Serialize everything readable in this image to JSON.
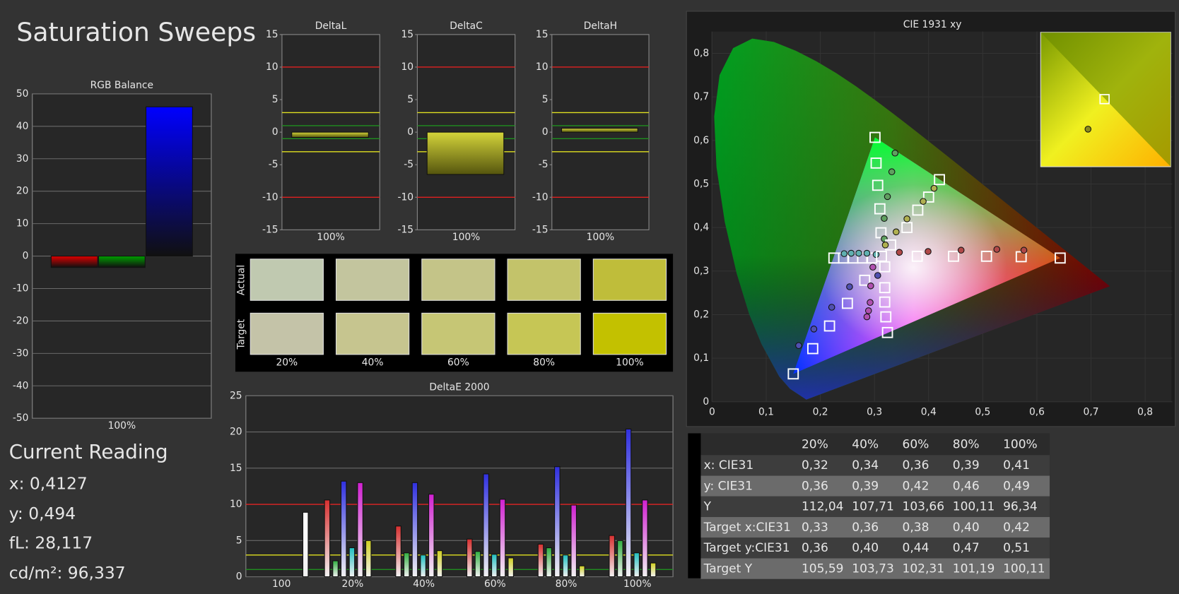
{
  "title": "Saturation Sweeps",
  "current_reading": {
    "title": "Current Reading",
    "lines": [
      "x: 0,4127",
      "y: 0,494",
      "fL: 28,117",
      "cd/m²: 96,337"
    ]
  },
  "swatches": {
    "row_labels": [
      "Actual",
      "Target"
    ],
    "columns": [
      "20%",
      "40%",
      "60%",
      "80%",
      "100%"
    ],
    "actual_colors": [
      "#c0c9b0",
      "#c3c59e",
      "#c4c488",
      "#c3c36a",
      "#bfbd3a"
    ],
    "target_colors": [
      "#c4c3a8",
      "#c6c58f",
      "#c6c675",
      "#c6c655",
      "#c3c100"
    ]
  },
  "table": {
    "header": [
      "20%",
      "40%",
      "60%",
      "80%",
      "100%"
    ],
    "rows": [
      [
        "x: CIE31",
        "0,32",
        "0,34",
        "0,36",
        "0,39",
        "0,41"
      ],
      [
        "y: CIE31",
        "0,36",
        "0,39",
        "0,42",
        "0,46",
        "0,49"
      ],
      [
        "Y",
        "112,04",
        "107,71",
        "103,66",
        "100,11",
        "96,34"
      ],
      [
        "Target x:CIE31",
        "0,33",
        "0,36",
        "0,38",
        "0,40",
        "0,42"
      ],
      [
        "Target y:CIE31",
        "0,36",
        "0,40",
        "0,44",
        "0,47",
        "0,51"
      ],
      [
        "Target Y",
        "105,59",
        "103,73",
        "102,31",
        "101,19",
        "100,11"
      ]
    ]
  },
  "chart_data": [
    {
      "type": "bar",
      "title": "RGB Balance",
      "categories": [
        "100%"
      ],
      "series": [
        {
          "color": "#e00000",
          "values": [
            -3.5
          ]
        },
        {
          "color": "#00a000",
          "values": [
            -3.5
          ]
        },
        {
          "color": "#0000ff",
          "values": [
            46
          ]
        }
      ],
      "ylim": [
        -50,
        50
      ],
      "yticks": [
        -50,
        -40,
        -30,
        -20,
        -10,
        0,
        10,
        20,
        30,
        40,
        50
      ],
      "grid": true
    },
    {
      "type": "bar",
      "title": "DeltaL",
      "categories": [
        "100%"
      ],
      "series": [
        {
          "color": "#d4d43a",
          "values": [
            -0.8
          ]
        }
      ],
      "ylim": [
        -15,
        15
      ],
      "yticks": [
        -15,
        -10,
        -5,
        0,
        5,
        10,
        15
      ],
      "grid": false,
      "threshold_lines": [
        {
          "value": 10,
          "color": "#e02020"
        },
        {
          "value": -10,
          "color": "#e02020"
        },
        {
          "value": 3,
          "color": "#e0e020"
        },
        {
          "value": -3,
          "color": "#e0e020"
        },
        {
          "value": 1,
          "color": "#1f8f1f"
        },
        {
          "value": -1,
          "color": "#1f8f1f"
        }
      ]
    },
    {
      "type": "bar",
      "title": "DeltaC",
      "categories": [
        "100%"
      ],
      "series": [
        {
          "color": "#d4d43a",
          "values": [
            -6.5
          ]
        }
      ],
      "ylim": [
        -15,
        15
      ],
      "yticks": [
        -15,
        -10,
        -5,
        0,
        5,
        10,
        15
      ],
      "grid": false,
      "threshold_lines": [
        {
          "value": 10,
          "color": "#e02020"
        },
        {
          "value": -10,
          "color": "#e02020"
        },
        {
          "value": 3,
          "color": "#e0e020"
        },
        {
          "value": -3,
          "color": "#e0e020"
        },
        {
          "value": 1,
          "color": "#1f8f1f"
        },
        {
          "value": -1,
          "color": "#1f8f1f"
        }
      ]
    },
    {
      "type": "bar",
      "title": "DeltaH",
      "categories": [
        "100%"
      ],
      "series": [
        {
          "color": "#d4d43a",
          "values": [
            0.6
          ]
        }
      ],
      "ylim": [
        -15,
        15
      ],
      "yticks": [
        -15,
        -10,
        -5,
        0,
        5,
        10,
        15
      ],
      "grid": false,
      "threshold_lines": [
        {
          "value": 10,
          "color": "#e02020"
        },
        {
          "value": -10,
          "color": "#e02020"
        },
        {
          "value": 3,
          "color": "#e0e020"
        },
        {
          "value": -3,
          "color": "#e0e020"
        },
        {
          "value": 1,
          "color": "#1f8f1f"
        },
        {
          "value": -1,
          "color": "#1f8f1f"
        }
      ]
    },
    {
      "type": "bar",
      "title": "DeltaE 2000",
      "categories": [
        "100",
        "20%",
        "40%",
        "60%",
        "80%",
        "100%"
      ],
      "series": [
        {
          "color": "#d83030",
          "values": [
            null,
            10.6,
            7.0,
            5.2,
            4.5,
            5.7
          ]
        },
        {
          "color": "#30b040",
          "values": [
            null,
            2.2,
            3.3,
            3.5,
            4.0,
            5.0
          ]
        },
        {
          "color": "#3030e0",
          "values": [
            null,
            13.2,
            13.0,
            14.2,
            15.2,
            20.4
          ]
        },
        {
          "color": "#20c0c0",
          "values": [
            null,
            4.0,
            3.0,
            3.1,
            3.0,
            3.3
          ]
        },
        {
          "color": "#d020d0",
          "values": [
            null,
            13.0,
            11.4,
            10.7,
            9.9,
            10.6
          ]
        },
        {
          "color": "#d0d020",
          "values": [
            null,
            5.0,
            3.6,
            2.6,
            1.5,
            1.9
          ]
        },
        {
          "color": "#ffffff",
          "values": [
            8.9,
            null,
            null,
            null,
            null,
            null
          ]
        }
      ],
      "ylim": [
        0,
        25
      ],
      "yticks": [
        0,
        5,
        10,
        15,
        20,
        25
      ],
      "grid": true,
      "threshold_lines": [
        {
          "value": 10,
          "color": "#e02020"
        },
        {
          "value": 3,
          "color": "#e0e020"
        },
        {
          "value": 1,
          "color": "#1f8f1f"
        }
      ]
    },
    {
      "type": "scatter",
      "title": "CIE 1931 xy",
      "xlim": [
        0,
        0.85
      ],
      "ylim": [
        0,
        0.85
      ],
      "xticks": [
        0,
        {
          "value": 0.1,
          "label": "0,1"
        },
        {
          "value": 0.2,
          "label": "0,2"
        },
        {
          "value": 0.3,
          "label": "0,3"
        },
        {
          "value": 0.4,
          "label": "0,4"
        },
        {
          "value": 0.5,
          "label": "0,5"
        },
        {
          "value": 0.6,
          "label": "0,6"
        },
        {
          "value": 0.7,
          "label": "0,7"
        },
        {
          "value": 0.8,
          "label": "0,8"
        }
      ],
      "yticks": [
        0,
        {
          "value": 0.1,
          "label": "0,1"
        },
        {
          "value": 0.2,
          "label": "0,2"
        },
        {
          "value": 0.3,
          "label": "0,3"
        },
        {
          "value": 0.4,
          "label": "0,4"
        },
        {
          "value": 0.5,
          "label": "0,5"
        },
        {
          "value": 0.6,
          "label": "0,6"
        },
        {
          "value": 0.7,
          "label": "0,7"
        },
        {
          "value": 0.8,
          "label": "0,8"
        }
      ],
      "grid": true,
      "series": [
        {
          "marker": "square",
          "color": "#ffffff",
          "x": [
            0.379,
            0.446,
            0.507,
            0.571,
            0.643
          ],
          "y": [
            0.334,
            0.334,
            0.334,
            0.333,
            0.33
          ]
        },
        {
          "marker": "circle",
          "color": "#b04848",
          "x": [
            0.346,
            0.399,
            0.46,
            0.526,
            0.576
          ],
          "y": [
            0.343,
            0.345,
            0.348,
            0.35,
            0.348
          ]
        },
        {
          "marker": "square",
          "color": "#ffffff",
          "x": [
            0.312,
            0.31,
            0.306,
            0.303,
            0.301
          ],
          "y": [
            0.388,
            0.443,
            0.497,
            0.548,
            0.607
          ]
        },
        {
          "marker": "circle",
          "color": "#60a060",
          "x": [
            0.318,
            0.318,
            0.324,
            0.332,
            0.338
          ],
          "y": [
            0.374,
            0.421,
            0.471,
            0.528,
            0.571
          ]
        },
        {
          "marker": "square",
          "color": "#ffffff",
          "x": [
            0.282,
            0.25,
            0.217,
            0.186,
            0.15
          ],
          "y": [
            0.279,
            0.226,
            0.174,
            0.122,
            0.064
          ]
        },
        {
          "marker": "circle",
          "color": "#5050b0",
          "x": [
            0.306,
            0.254,
            0.221,
            0.188,
            0.16
          ],
          "y": [
            0.29,
            0.264,
            0.217,
            0.167,
            0.129
          ]
        },
        {
          "marker": "square",
          "color": "#ffffff",
          "x": [
            0.295,
            0.278,
            0.26,
            0.243,
            0.225
          ],
          "y": [
            0.33,
            0.33,
            0.33,
            0.33,
            0.33
          ]
        },
        {
          "marker": "circle",
          "color": "#60b0b0",
          "x": [
            0.303,
            0.286,
            0.271,
            0.257,
            0.244
          ],
          "y": [
            0.338,
            0.341,
            0.341,
            0.341,
            0.34
          ]
        },
        {
          "marker": "square",
          "color": "#ffffff",
          "x": [
            0.319,
            0.319,
            0.319,
            0.321,
            0.324
          ],
          "y": [
            0.31,
            0.262,
            0.229,
            0.195,
            0.159
          ]
        },
        {
          "marker": "circle",
          "color": "#b050b0",
          "x": [
            0.297,
            0.293,
            0.292,
            0.289,
            0.286
          ],
          "y": [
            0.309,
            0.266,
            0.228,
            0.209,
            0.195
          ]
        },
        {
          "marker": "square",
          "color": "#ffffff",
          "x": [
            0.33,
            0.36,
            0.38,
            0.4,
            0.42
          ],
          "y": [
            0.36,
            0.4,
            0.44,
            0.47,
            0.51
          ]
        },
        {
          "marker": "circle",
          "color": "#b0b050",
          "x": [
            0.32,
            0.34,
            0.36,
            0.39,
            0.41
          ],
          "y": [
            0.36,
            0.39,
            0.42,
            0.46,
            0.49
          ]
        },
        {
          "marker": "square",
          "color": "#ffffff",
          "x": [
            0.313
          ],
          "y": [
            0.334
          ]
        }
      ]
    }
  ]
}
